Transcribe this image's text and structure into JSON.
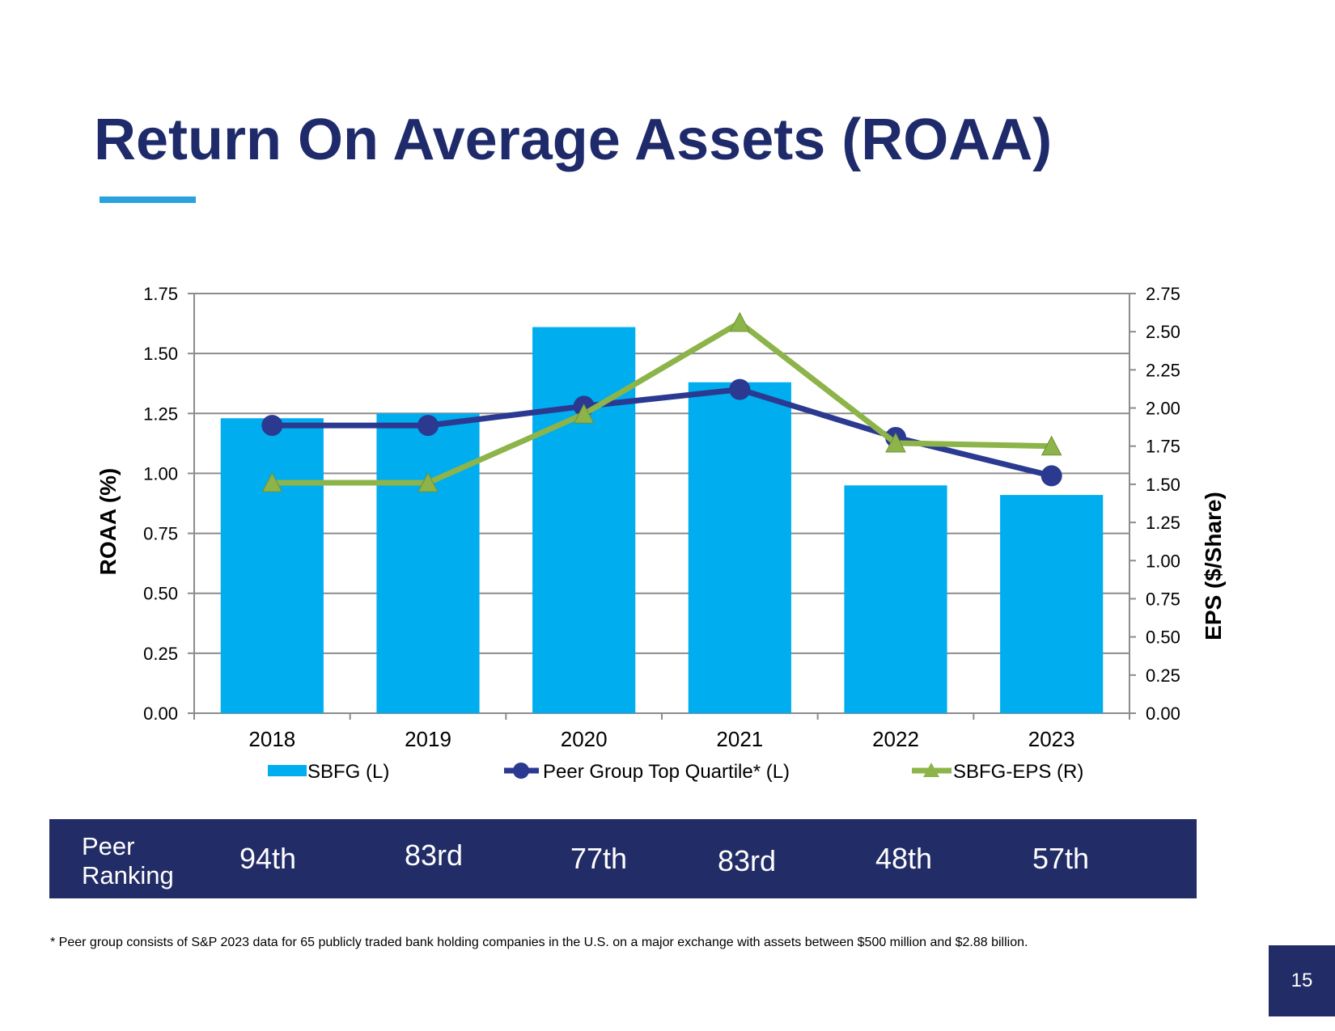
{
  "title": "Return On Average Assets (ROAA)",
  "chart_data": {
    "type": "bar",
    "categories": [
      "2018",
      "2019",
      "2020",
      "2021",
      "2022",
      "2023"
    ],
    "series": [
      {
        "name": "SBFG (L)",
        "type": "bar",
        "axis": "left",
        "color": "#00adee",
        "values": [
          1.23,
          1.25,
          1.61,
          1.38,
          0.95,
          0.91
        ]
      },
      {
        "name": "Peer Group Top Quartile* (L)",
        "type": "line",
        "axis": "left",
        "marker": "circle",
        "color": "#2b3990",
        "values": [
          1.2,
          1.2,
          1.28,
          1.35,
          1.15,
          0.99
        ]
      },
      {
        "name": "SBFG-EPS (R)",
        "type": "line",
        "axis": "right",
        "marker": "triangle",
        "color": "#8db44a",
        "values": [
          1.51,
          1.51,
          1.96,
          2.56,
          1.77,
          1.75
        ]
      }
    ],
    "ylabel": "ROAA (%)",
    "ylabel_right": "EPS ($/Share)",
    "ylim": [
      0,
      1.75
    ],
    "ylim_right": [
      0,
      2.75
    ],
    "yticks": [
      "0.00",
      "0.25",
      "0.50",
      "0.75",
      "1.00",
      "1.25",
      "1.50",
      "1.75"
    ],
    "yticks_right": [
      "0.00",
      "0.25",
      "0.50",
      "0.75",
      "1.00",
      "1.25",
      "1.50",
      "1.75",
      "2.00",
      "2.25",
      "2.50",
      "2.75"
    ],
    "grid": true,
    "legend_position": "bottom"
  },
  "ranking": {
    "label": "Peer Ranking",
    "values": [
      "94th",
      "83rd",
      "77th",
      "83rd",
      "48th",
      "57th"
    ]
  },
  "footnote": "* Peer group consists of S&P 2023 data for 65 publicly traded bank holding companies in the U.S. on a major exchange with assets between $500 million and $2.88 billion.",
  "page_number": "15"
}
